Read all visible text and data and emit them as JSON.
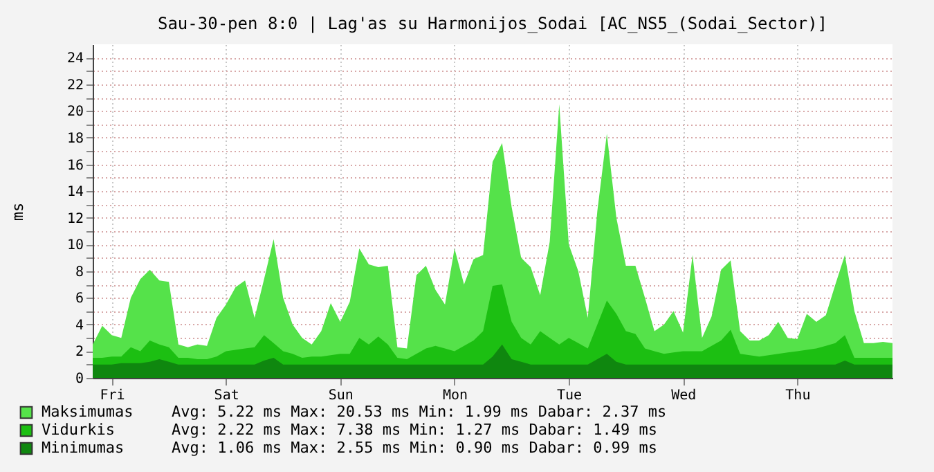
{
  "chart_data": {
    "type": "area",
    "title": "Sau-30-pen 8:0 | Lag'as su Harmonijos_Sodai [AC_NS5_(Sodai_Sector)]",
    "ylabel": "ms",
    "categories": [
      null,
      null,
      "Fri",
      null,
      null,
      null,
      null,
      null,
      null,
      null,
      null,
      null,
      null,
      null,
      "Sat",
      null,
      null,
      null,
      null,
      null,
      null,
      null,
      null,
      null,
      null,
      null,
      "Sun",
      null,
      null,
      null,
      null,
      null,
      null,
      null,
      null,
      null,
      null,
      null,
      "Mon",
      null,
      null,
      null,
      null,
      null,
      null,
      null,
      null,
      null,
      null,
      null,
      "Tue",
      null,
      null,
      null,
      null,
      null,
      null,
      null,
      null,
      null,
      null,
      null,
      "Wed",
      null,
      null,
      null,
      null,
      null,
      null,
      null,
      null,
      null,
      null,
      null,
      "Thu",
      null,
      null,
      null,
      null,
      null,
      null,
      null,
      null,
      null,
      null
    ],
    "ylim": [
      0,
      25
    ],
    "yticks": [
      0,
      {
        "value": 1,
        "label": null
      },
      2,
      {
        "value": 3,
        "label": null
      },
      4,
      {
        "value": 5,
        "label": null
      },
      6,
      {
        "value": 7,
        "label": null
      },
      8,
      {
        "value": 9,
        "label": null
      },
      10,
      {
        "value": 11,
        "label": null
      },
      12,
      {
        "value": 13,
        "label": null
      },
      14,
      {
        "value": 15,
        "label": null
      },
      16,
      {
        "value": 17,
        "label": null
      },
      18,
      {
        "value": 19,
        "label": null
      },
      20,
      {
        "value": 21,
        "label": null
      },
      22,
      {
        "value": 23,
        "label": null
      },
      24
    ],
    "grid": true,
    "legend": "bottom",
    "series": [
      {
        "name": "Maksimumas",
        "color": "#55e24a",
        "values": [
          2.5,
          3.9,
          3.2,
          3.0,
          6.0,
          7.4,
          8.1,
          7.3,
          7.2,
          2.5,
          2.3,
          2.5,
          2.4,
          4.5,
          5.5,
          6.8,
          7.3,
          4.5,
          7.4,
          10.4,
          6.0,
          4.0,
          3.0,
          2.5,
          3.5,
          5.6,
          4.2,
          5.7,
          9.7,
          8.5,
          8.3,
          8.4,
          2.3,
          2.2,
          7.7,
          8.4,
          6.6,
          5.5,
          9.7,
          7.0,
          8.9,
          9.2,
          16.2,
          17.6,
          12.8,
          9.0,
          8.3,
          6.2,
          10.2,
          20.5,
          10.0,
          8.0,
          4.5,
          12.5,
          18.3,
          12.0,
          8.4,
          8.4,
          6.0,
          3.5,
          4.0,
          5.0,
          3.4,
          9.2,
          3.0,
          4.6,
          8.1,
          8.8,
          3.5,
          2.8,
          2.8,
          3.2,
          4.2,
          3.0,
          2.9,
          4.8,
          4.2,
          4.7,
          7.0,
          9.2,
          5.0,
          2.6,
          2.6,
          2.7,
          2.6
        ]
      },
      {
        "name": "Vidurkis",
        "color": "#1cbf12",
        "values": [
          1.5,
          1.5,
          1.6,
          1.6,
          2.3,
          2.0,
          2.8,
          2.5,
          2.3,
          1.5,
          1.5,
          1.4,
          1.4,
          1.6,
          2.0,
          2.1,
          2.2,
          2.3,
          3.2,
          2.6,
          2.0,
          1.8,
          1.5,
          1.6,
          1.6,
          1.7,
          1.8,
          1.8,
          3.0,
          2.5,
          3.1,
          2.5,
          1.5,
          1.4,
          1.8,
          2.2,
          2.4,
          2.2,
          2.0,
          2.4,
          2.8,
          3.5,
          6.9,
          7.0,
          4.2,
          3.0,
          2.5,
          3.5,
          3.0,
          2.5,
          3.0,
          2.6,
          2.2,
          4.0,
          5.8,
          4.8,
          3.5,
          3.3,
          2.2,
          2.0,
          1.8,
          1.9,
          2.0,
          2.0,
          2.0,
          2.4,
          2.8,
          3.6,
          1.8,
          1.7,
          1.6,
          1.7,
          1.8,
          1.9,
          2.0,
          2.1,
          2.2,
          2.4,
          2.6,
          3.2,
          1.5,
          1.5,
          1.5,
          1.5,
          1.5
        ]
      },
      {
        "name": "Minimumas",
        "color": "#0f870f",
        "values": [
          1.0,
          1.0,
          1.0,
          1.1,
          1.1,
          1.1,
          1.2,
          1.4,
          1.2,
          1.0,
          1.0,
          1.0,
          1.0,
          1.0,
          1.0,
          1.0,
          1.0,
          1.0,
          1.3,
          1.5,
          1.0,
          1.0,
          1.0,
          1.0,
          1.0,
          1.0,
          1.0,
          1.0,
          1.0,
          1.0,
          1.0,
          1.0,
          1.0,
          1.0,
          1.0,
          1.0,
          1.0,
          1.0,
          1.0,
          1.0,
          1.0,
          1.0,
          1.6,
          2.5,
          1.4,
          1.2,
          1.0,
          1.0,
          1.0,
          1.0,
          1.0,
          1.0,
          1.0,
          1.4,
          1.8,
          1.2,
          1.0,
          1.0,
          1.0,
          1.0,
          1.0,
          1.0,
          1.0,
          1.0,
          1.0,
          1.0,
          1.0,
          1.0,
          1.0,
          1.0,
          1.0,
          1.0,
          1.0,
          1.0,
          1.0,
          1.0,
          1.0,
          1.0,
          1.0,
          1.3,
          1.0,
          1.0,
          1.0,
          1.0,
          1.0
        ]
      }
    ],
    "annotations": [
      "Avg: 5.22 ms Max: 20.53 ms Min: 1.99 ms Dabar: 2.37 ms",
      "Avg: 2.22 ms Max: 7.38 ms Min: 1.27 ms Dabar: 1.49 ms",
      "Avg: 1.06 ms Max: 2.55 ms Min: 0.90 ms Dabar: 0.99 ms"
    ]
  }
}
